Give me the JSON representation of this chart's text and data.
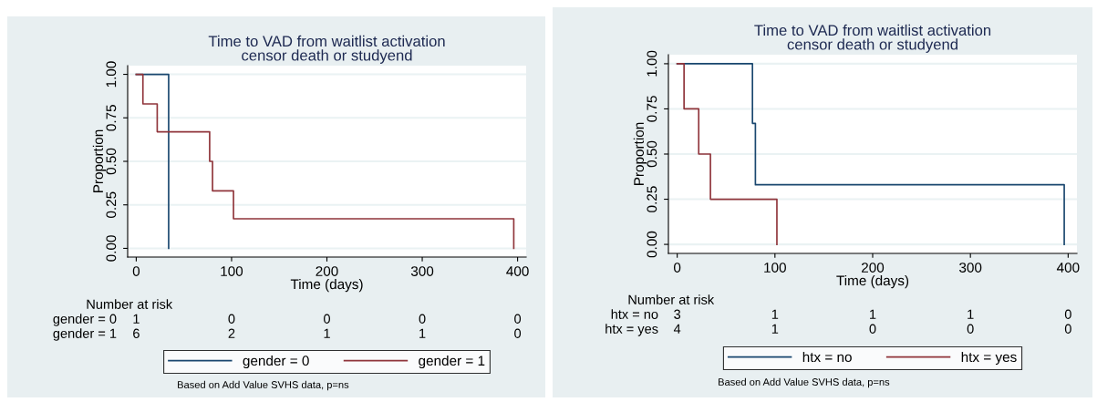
{
  "chart_data": [
    {
      "type": "step",
      "title": "Time to VAD from waitlist activation\ncensor death or studyend",
      "xlabel": "Time (days)",
      "ylabel": "Proportion",
      "xlim": [
        -9,
        409
      ],
      "xticks": [
        0,
        100,
        200,
        300,
        400
      ],
      "ylim": [
        -0.05,
        1.05
      ],
      "yticks": [
        {
          "value": 0,
          "label": "0.00"
        },
        {
          "value": 0.25,
          "label": "0.25"
        },
        {
          "value": 0.5,
          "label": "0.50"
        },
        {
          "value": 0.75,
          "label": "0.75"
        },
        {
          "value": 1,
          "label": "1.00"
        }
      ],
      "grid": "y",
      "legend": "bottom",
      "series": [
        {
          "name": "gender = 0",
          "color": "#1a476f",
          "x": [
            0,
            34
          ],
          "values": [
            1,
            0
          ]
        },
        {
          "name": "gender = 1",
          "color": "#90353b",
          "x": [
            0,
            7,
            22,
            77,
            80,
            102,
            396
          ],
          "values": [
            1,
            0.83,
            0.67,
            0.5,
            0.33,
            0.17,
            0
          ]
        }
      ],
      "annotations": [
        "Number at risk",
        "gender = 0",
        "1",
        "0",
        "0",
        "0",
        "0",
        "gender = 1",
        "6",
        "2",
        "1",
        "1",
        "0",
        "Based on Add Value SVHS data, p=ns"
      ]
    },
    {
      "type": "step",
      "title": "Time to VAD from waitlist activation\ncensor death or studyend",
      "xlabel": "Time (days)",
      "ylabel": "Proportion",
      "xlim": [
        -9,
        409
      ],
      "xticks": [
        0,
        100,
        200,
        300,
        400
      ],
      "ylim": [
        -0.05,
        1.05
      ],
      "yticks": [
        {
          "value": 0,
          "label": "0.00"
        },
        {
          "value": 0.25,
          "label": "0.25"
        },
        {
          "value": 0.5,
          "label": "0.50"
        },
        {
          "value": 0.75,
          "label": "0.75"
        },
        {
          "value": 1,
          "label": "1.00"
        }
      ],
      "grid": "y",
      "legend": "bottom",
      "series": [
        {
          "name": "htx = no",
          "color": "#1a476f",
          "x": [
            0,
            77,
            80,
            396
          ],
          "values": [
            1,
            0.67,
            0.33,
            0
          ]
        },
        {
          "name": "htx = yes",
          "color": "#90353b",
          "x": [
            0,
            7,
            22,
            34,
            102
          ],
          "values": [
            1,
            0.75,
            0.5,
            0.25,
            0
          ]
        }
      ],
      "annotations": [
        "Number at risk",
        "htx = no",
        "3",
        "1",
        "1",
        "1",
        "0",
        "htx = yes",
        "4",
        "1",
        "0",
        "0",
        "0",
        "Based on Add Value SVHS data, p=ns"
      ]
    }
  ]
}
